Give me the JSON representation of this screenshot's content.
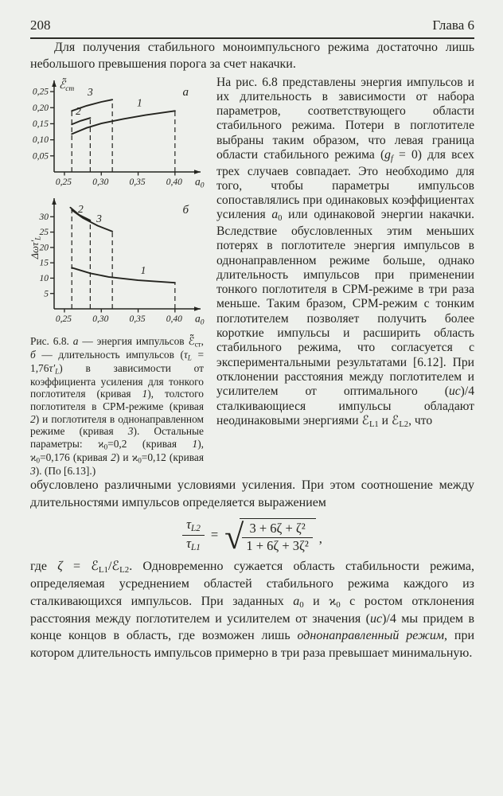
{
  "page": {
    "bg": "#eef0ec",
    "ink": "#24241f"
  },
  "header": {
    "page_number": "208",
    "chapter": "Глава 6"
  },
  "paragraphs": {
    "p1": [
      {
        "t": "Для получения стабильного моноимпульсного режима достаточно лишь небольшого превышения порога за счет накачки."
      }
    ],
    "p2": [
      {
        "t": "На рис. 6.8 представлены энергия импульсов и их длительность в зависимости от набора параметров, соответствующего области стабильного режима. Потери в поглотителе выбраны таким образом, что левая граница области стабильного режима ("
      },
      {
        "t": "g",
        "c": "i"
      },
      {
        "t": "f",
        "c": "subi"
      },
      {
        "t": " = 0) для всех трех случаев совпадает. Это необходимо для того, чтобы параметры импульсов сопоставлялись при одинаковых коэффициентах усиления "
      },
      {
        "t": "a",
        "c": "i"
      },
      {
        "t": "0",
        "c": "sub"
      },
      {
        "t": " или одинаковой энергии накачки. Вследствие обусловленных этим меньших потерях в поглотителе энергия импульсов в однонаправленном режиме больше, однако длительность импульсов при применении тонкого поглотителя в СРМ-режиме в три раза меньше. Таким бразом, СРМ-режим с тонким поглотителем позволяет получить более короткие импульсы и расширить область стабильного режима, что согласуется с экспериментальными результатами [6.12]. При отклонении расстояния между поглотителем и усилителем от оптимального ("
      },
      {
        "t": "uc",
        "c": "i"
      },
      {
        "t": ")/4 сталкивающиеся импульсы обладают неодинаковыми энергиями "
      },
      {
        "t": "ℰ"
      },
      {
        "t": "L1",
        "c": "sub"
      },
      {
        "t": " и "
      },
      {
        "t": "ℰ"
      },
      {
        "t": "L2",
        "c": "sub"
      },
      {
        "t": ", что"
      }
    ],
    "p3": [
      {
        "t": "обусловлено различными условиями усиления. При этом соотношение между длительностями импульсов определяется выражением"
      }
    ],
    "p4": [
      {
        "t": "где "
      },
      {
        "t": "ζ",
        "c": "i"
      },
      {
        "t": " = "
      },
      {
        "t": "ℰ"
      },
      {
        "t": "L1",
        "c": "sub"
      },
      {
        "t": "/"
      },
      {
        "t": "ℰ"
      },
      {
        "t": "L2",
        "c": "sub"
      },
      {
        "t": ". Одновременно сужается область стабильности режима, определяемая усреднением областей стабильного режима каждого из сталкивающихся импульсов. При заданных "
      },
      {
        "t": "a",
        "c": "i"
      },
      {
        "t": "0",
        "c": "sub"
      },
      {
        "t": " и "
      },
      {
        "t": "ϰ"
      },
      {
        "t": "0",
        "c": "sub"
      },
      {
        "t": " с ростом отклонения расстояния между поглотителем и усилителем от значения ("
      },
      {
        "t": "uc",
        "c": "i"
      },
      {
        "t": ")/4 мы придем в конце концов в область, где возможен лишь "
      },
      {
        "t": "однонаправленный режим",
        "c": "i"
      },
      {
        "t": ", при котором длительность импульсов примерно в три раза превышает минимальную."
      }
    ]
  },
  "figure": {
    "caption": [
      {
        "t": "Рис. 6.8. "
      },
      {
        "t": "а",
        "c": "i"
      },
      {
        "t": " — энергия импульсов "
      },
      {
        "t": "ℰ̃"
      },
      {
        "t": "ст",
        "c": "sub"
      },
      {
        "t": ", "
      },
      {
        "t": "б",
        "c": "i"
      },
      {
        "t": " — длительность импульсов ("
      },
      {
        "t": "τ",
        "c": "i"
      },
      {
        "t": "L",
        "c": "subi"
      },
      {
        "t": " = 1,76"
      },
      {
        "t": "τ′",
        "c": "i"
      },
      {
        "t": "L",
        "c": "subi"
      },
      {
        "t": ") в зависимости от коэффициента усиления для тонкого поглотителя (кривая "
      },
      {
        "t": "1",
        "c": "i"
      },
      {
        "t": "), толстого поглотителя в СРМ-режиме (кривая "
      },
      {
        "t": "2",
        "c": "i"
      },
      {
        "t": ") и поглотителя в однонаправленном режиме (кривая "
      },
      {
        "t": "3",
        "c": "i"
      },
      {
        "t": "). Остальные параметры: "
      },
      {
        "t": "ϰ"
      },
      {
        "t": "0",
        "c": "sub"
      },
      {
        "t": "=0,2 (кривая "
      },
      {
        "t": "1",
        "c": "i"
      },
      {
        "t": "), "
      },
      {
        "t": "ϰ"
      },
      {
        "t": "0",
        "c": "sub"
      },
      {
        "t": "=0,176 (кривая "
      },
      {
        "t": "2",
        "c": "i"
      },
      {
        "t": ") и "
      },
      {
        "t": "ϰ"
      },
      {
        "t": "0",
        "c": "sub"
      },
      {
        "t": "=0,12 (кривая "
      },
      {
        "t": "3",
        "c": "i"
      },
      {
        "t": "). (По [6.13].)"
      }
    ]
  },
  "equation": {
    "lhs_num": [
      {
        "t": "τ",
        "c": "i"
      },
      {
        "t": "L2",
        "c": "subi"
      }
    ],
    "lhs_den": [
      {
        "t": "τ",
        "c": "i"
      },
      {
        "t": "L1",
        "c": "subi"
      }
    ],
    "equals": "=",
    "radical": "√",
    "rhs_num": "3 + 6ζ + ζ²",
    "rhs_den": "1 + 6ζ + 3ζ²",
    "comma": ","
  },
  "chart_data": [
    {
      "type": "line",
      "panel_label": "а",
      "ylabel": {
        "main": "ℰ̃",
        "sub": "ст",
        "rotated": false
      },
      "xlabel": {
        "main": "a",
        "sub": "0"
      },
      "xlim": [
        0.236,
        0.425
      ],
      "ylim": [
        0,
        0.275
      ],
      "x_ticks": [
        {
          "v": 0.25,
          "label": "0,25"
        },
        {
          "v": 0.3,
          "label": "0,30"
        },
        {
          "v": 0.35,
          "label": "0,35"
        },
        {
          "v": 0.4,
          "label": "0,40"
        }
      ],
      "y_ticks": [
        {
          "v": 0.05,
          "label": "0,05"
        },
        {
          "v": 0.1,
          "label": "0,10"
        },
        {
          "v": 0.15,
          "label": "0,15"
        },
        {
          "v": 0.2,
          "label": "0,20"
        },
        {
          "v": 0.25,
          "label": "0,25"
        }
      ],
      "series": [
        {
          "name": "1",
          "label_at": [
            0.352,
            0.204
          ],
          "points": [
            [
              0.26,
              0.118
            ],
            [
              0.28,
              0.137
            ],
            [
              0.3,
              0.151
            ],
            [
              0.33,
              0.165
            ],
            [
              0.36,
              0.177
            ],
            [
              0.4,
              0.19
            ]
          ]
        },
        {
          "name": "2",
          "label_at": [
            0.269,
            0.178
          ],
          "points": [
            [
              0.26,
              0.148
            ],
            [
              0.272,
              0.159
            ],
            [
              0.285,
              0.168
            ]
          ]
        },
        {
          "name": "3",
          "label_at": [
            0.285,
            0.238
          ],
          "points": [
            [
              0.26,
              0.19
            ],
            [
              0.28,
              0.206
            ],
            [
              0.3,
              0.218
            ],
            [
              0.315,
              0.225
            ]
          ]
        }
      ],
      "droplines": [
        {
          "x": 0.26,
          "y": 0.19
        },
        {
          "x": 0.285,
          "y": 0.168
        },
        {
          "x": 0.315,
          "y": 0.225
        },
        {
          "x": 0.4,
          "y": 0.19
        }
      ]
    },
    {
      "type": "line",
      "panel_label": "б",
      "ylabel": {
        "main": "Δωτ′",
        "sub": "L",
        "rotated": true
      },
      "xlabel": {
        "main": "a",
        "sub": "0"
      },
      "xlim": [
        0.236,
        0.425
      ],
      "ylim": [
        0,
        35
      ],
      "x_ticks": [
        {
          "v": 0.25,
          "label": "0,25"
        },
        {
          "v": 0.3,
          "label": "0,30"
        },
        {
          "v": 0.35,
          "label": "0,35"
        },
        {
          "v": 0.4,
          "label": "0,40"
        }
      ],
      "y_ticks": [
        {
          "v": 5,
          "label": "5"
        },
        {
          "v": 10,
          "label": "10"
        },
        {
          "v": 15,
          "label": "15"
        },
        {
          "v": 20,
          "label": "20"
        },
        {
          "v": 25,
          "label": "25"
        },
        {
          "v": 30,
          "label": "30"
        }
      ],
      "series": [
        {
          "name": "2",
          "label_at": [
            0.272,
            31.4
          ],
          "points": [
            [
              0.258,
              33.0
            ],
            [
              0.27,
              30.6
            ],
            [
              0.285,
              28.8
            ]
          ]
        },
        {
          "name": "3",
          "label_at": [
            0.297,
            28.2
          ],
          "points": [
            [
              0.26,
              32.2
            ],
            [
              0.275,
              29.6
            ],
            [
              0.295,
              27.1
            ],
            [
              0.315,
              25.2
            ]
          ]
        },
        {
          "name": "1",
          "label_at": [
            0.357,
            11.4
          ],
          "points": [
            [
              0.26,
              13.4
            ],
            [
              0.285,
              11.6
            ],
            [
              0.31,
              10.4
            ],
            [
              0.35,
              9.3
            ],
            [
              0.4,
              8.5
            ]
          ]
        }
      ],
      "droplines": [
        {
          "x": 0.26,
          "y": 32.6
        },
        {
          "x": 0.285,
          "y": 28.8
        },
        {
          "x": 0.315,
          "y": 25.2
        },
        {
          "x": 0.4,
          "y": 8.5
        }
      ]
    }
  ]
}
